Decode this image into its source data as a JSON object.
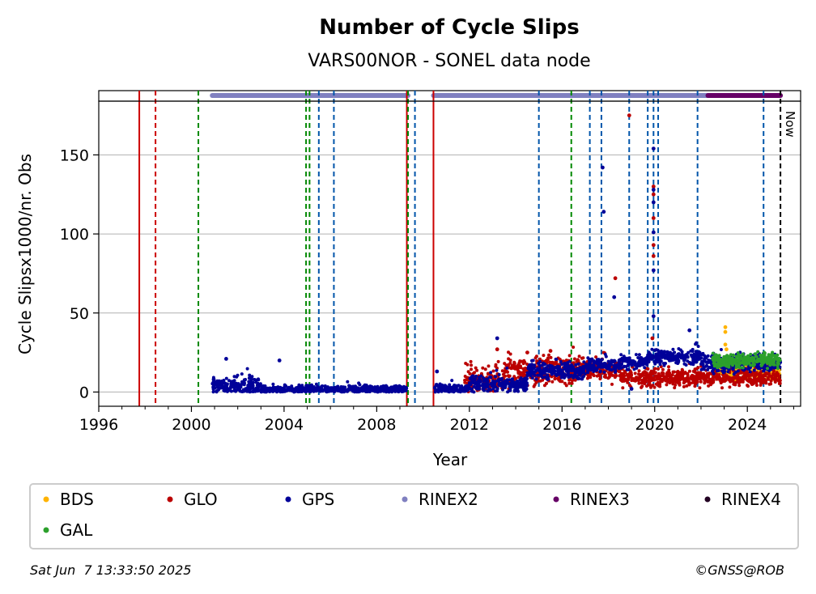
{
  "chart_data": {
    "type": "scatter",
    "title": "Number of Cycle Slips",
    "subtitle": "VARS00NOR - SONEL data node",
    "xlabel": "Year",
    "ylabel": "Cycle Slipsx1000/nr. Obs",
    "xlim": [
      1996,
      2026.3
    ],
    "ylim": [
      -9,
      184
    ],
    "x_ticks": [
      1996,
      2000,
      2004,
      2008,
      2012,
      2016,
      2020,
      2024
    ],
    "y_ticks": [
      0,
      50,
      100,
      150
    ],
    "grid": "y",
    "now_label": "Now",
    "now_x": 2025.43,
    "event_lines": [
      {
        "x": 1997.75,
        "type": "receiver",
        "color": "#cc0000",
        "style": "solid"
      },
      {
        "x": 1998.45,
        "type": "receiver+antenna",
        "color": "#cc0000",
        "style": "dashed"
      },
      {
        "x": 2000.3,
        "type": "antenna",
        "color": "#008800",
        "style": "dashed"
      },
      {
        "x": 2004.95,
        "type": "antenna",
        "color": "#008800",
        "style": "dashed"
      },
      {
        "x": 2005.1,
        "type": "antenna",
        "color": "#008800",
        "style": "dashed"
      },
      {
        "x": 2005.5,
        "type": "firmware",
        "color": "#0055aa",
        "style": "dashed"
      },
      {
        "x": 2006.15,
        "type": "firmware",
        "color": "#0055aa",
        "style": "dashed"
      },
      {
        "x": 2009.3,
        "type": "receiver",
        "color": "#cc0000",
        "style": "solid"
      },
      {
        "x": 2009.35,
        "type": "antenna",
        "color": "#008800",
        "style": "dashed"
      },
      {
        "x": 2009.65,
        "type": "firmware",
        "color": "#0055aa",
        "style": "dashed"
      },
      {
        "x": 2010.45,
        "type": "receiver",
        "color": "#cc0000",
        "style": "solid"
      },
      {
        "x": 2015.0,
        "type": "firmware",
        "color": "#0055aa",
        "style": "dashed"
      },
      {
        "x": 2016.4,
        "type": "antenna",
        "color": "#008800",
        "style": "dashed"
      },
      {
        "x": 2017.2,
        "type": "firmware",
        "color": "#0055aa",
        "style": "dashed"
      },
      {
        "x": 2017.7,
        "type": "firmware",
        "color": "#0055aa",
        "style": "dashed"
      },
      {
        "x": 2018.9,
        "type": "firmware",
        "color": "#0055aa",
        "style": "dashed"
      },
      {
        "x": 2019.7,
        "type": "firmware",
        "color": "#0055aa",
        "style": "dashed"
      },
      {
        "x": 2019.95,
        "type": "firmware",
        "color": "#0055aa",
        "style": "dashed"
      },
      {
        "x": 2020.15,
        "type": "firmware",
        "color": "#0055aa",
        "style": "dashed"
      },
      {
        "x": 2021.85,
        "type": "firmware",
        "color": "#0055aa",
        "style": "dashed"
      },
      {
        "x": 2024.7,
        "type": "firmware",
        "color": "#0055aa",
        "style": "dashed"
      }
    ],
    "rinex_bars": [
      {
        "name": "RINEX2",
        "start": 2000.9,
        "end": 2009.35,
        "color": "#8080c0"
      },
      {
        "name": "RINEX2",
        "start": 2010.45,
        "end": 2022.3,
        "color": "#8080c0"
      },
      {
        "name": "RINEX3",
        "start": 2022.3,
        "end": 2025.43,
        "color": "#660066"
      }
    ],
    "series": [
      {
        "name": "BDS",
        "color": "#ffb300",
        "segments": [
          {
            "x0": 2022.5,
            "x1": 2025.43,
            "base": 13,
            "spread": 5
          }
        ],
        "outliers": [
          [
            2023.05,
            41
          ],
          [
            2023.05,
            38
          ],
          [
            2023.05,
            30
          ],
          [
            2023.1,
            27
          ],
          [
            2025.2,
            8
          ]
        ]
      },
      {
        "name": "GLO",
        "color": "#bb0000",
        "segments": [
          {
            "x0": 2011.8,
            "x1": 2013.5,
            "base": 7,
            "spread": 8
          },
          {
            "x0": 2013.5,
            "x1": 2016.5,
            "base": 13,
            "spread": 9
          },
          {
            "x0": 2016.5,
            "x1": 2018.5,
            "base": 14,
            "spread": 7
          },
          {
            "x0": 2018.5,
            "x1": 2025.43,
            "base": 9,
            "spread": 5
          }
        ],
        "outliers": [
          [
            2018.9,
            175
          ],
          [
            2019.95,
            130
          ],
          [
            2019.95,
            125
          ],
          [
            2019.95,
            110
          ],
          [
            2019.95,
            93
          ],
          [
            2019.95,
            86
          ],
          [
            2018.3,
            72
          ],
          [
            2019.9,
            34
          ],
          [
            2013.2,
            27
          ],
          [
            2015.5,
            26
          ],
          [
            2014.5,
            25
          ]
        ]
      },
      {
        "name": "GPS",
        "color": "#000099",
        "segments": [
          {
            "x0": 2000.9,
            "x1": 2001.8,
            "base": 3,
            "spread": 5
          },
          {
            "x0": 2001.8,
            "x1": 2003.0,
            "base": 4,
            "spread": 6
          },
          {
            "x0": 2003.0,
            "x1": 2009.3,
            "base": 1.5,
            "spread": 2.5
          },
          {
            "x0": 2010.45,
            "x1": 2012.0,
            "base": 2,
            "spread": 2.5
          },
          {
            "x0": 2012.0,
            "x1": 2014.5,
            "base": 5,
            "spread": 5
          },
          {
            "x0": 2014.5,
            "x1": 2017.0,
            "base": 13,
            "spread": 5
          },
          {
            "x0": 2017.0,
            "x1": 2018.5,
            "base": 17,
            "spread": 4
          },
          {
            "x0": 2018.5,
            "x1": 2019.7,
            "base": 19,
            "spread": 4
          },
          {
            "x0": 2019.7,
            "x1": 2022.0,
            "base": 22,
            "spread": 4
          },
          {
            "x0": 2022.0,
            "x1": 2025.43,
            "base": 18,
            "spread": 5
          }
        ],
        "outliers": [
          [
            2017.75,
            142
          ],
          [
            2017.8,
            114
          ],
          [
            2018.25,
            60
          ],
          [
            2019.95,
            154
          ],
          [
            2019.95,
            128
          ],
          [
            2019.95,
            120
          ],
          [
            2019.95,
            101
          ],
          [
            2019.95,
            77
          ],
          [
            2019.95,
            48
          ],
          [
            2003.8,
            20
          ],
          [
            2001.5,
            21
          ],
          [
            2013.2,
            34
          ],
          [
            2021.5,
            39
          ],
          [
            2010.6,
            13
          ],
          [
            2019.0,
            2
          ]
        ]
      },
      {
        "name": "GAL",
        "color": "#2ca02c",
        "segments": [
          {
            "x0": 2022.5,
            "x1": 2025.43,
            "base": 20,
            "spread": 4
          }
        ],
        "outliers": []
      }
    ],
    "legend": [
      "BDS",
      "GLO",
      "GPS",
      "RINEX2",
      "RINEX3",
      "RINEX4",
      "GAL"
    ],
    "legend_colors": {
      "BDS": "#ffb300",
      "GLO": "#bb0000",
      "GPS": "#000099",
      "RINEX2": "#8080c0",
      "RINEX3": "#660066",
      "RINEX4": "#220022",
      "GAL": "#2ca02c"
    },
    "legend_placement": "bottom"
  },
  "footer": {
    "date": "Sat Jun  7 13:33:50 2025",
    "credit": "©GNSS@ROB"
  }
}
